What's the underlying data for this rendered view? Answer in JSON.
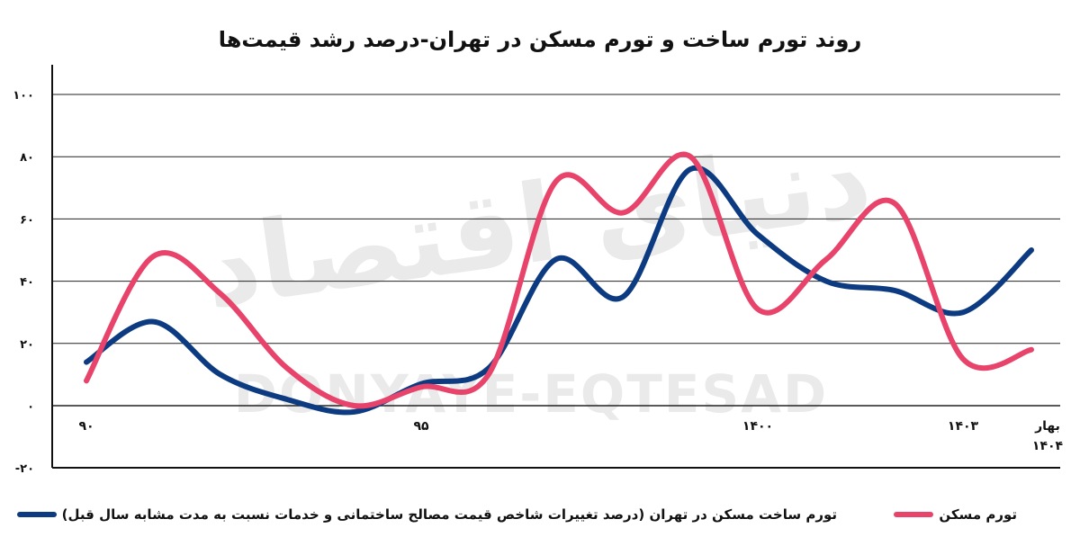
{
  "title": "روند تورم ساخت و تورم مسکن در تهران-درصد رشد قیمت‌ها",
  "watermark": {
    "fa": "دنیای اقتصاد",
    "en": "DONYAYE-EQTESAD"
  },
  "legend": {
    "housing_label": "تورم مسکن",
    "construction_label": "تورم ساخت مسکن در تهران (درصد تغییرات شاخص قیمت مصالح ساختمانی و خدمات نسبت به مدت مشابه سال قبل)"
  },
  "colors": {
    "housing": "#e8436a",
    "construction": "#0d3b82"
  },
  "chart_data": {
    "type": "line",
    "title": "روند تورم ساخت و تورم مسکن در تهران-درصد رشد قیمت‌ها",
    "xlabel": "",
    "ylabel": "",
    "ylim": [
      -20,
      110
    ],
    "yticks": [
      100,
      80,
      60,
      40,
      20,
      0,
      -20
    ],
    "ytick_labels": [
      "۱۰۰",
      "۸۰",
      "۶۰",
      "۴۰",
      "۲۰",
      "۰",
      "-۲۰"
    ],
    "xlim": [
      90,
      1404.5
    ],
    "x_tick_labels": [
      {
        "x": 90,
        "label": "۹۰"
      },
      {
        "x": 95,
        "label": "۹۵"
      },
      {
        "x": 1400,
        "label": "۱۴۰۰"
      },
      {
        "x": 1403,
        "label": "۱۴۰۳"
      },
      {
        "x": 1404.5,
        "label": "بهار ۱۴۰۴"
      }
    ],
    "grid": true,
    "legend_position": "bottom",
    "series": [
      {
        "name": "تورم مسکن",
        "color": "#e8436a",
        "values": [
          {
            "x": 90,
            "y": 8
          },
          {
            "x": 91,
            "y": 48
          },
          {
            "x": 92,
            "y": 36
          },
          {
            "x": 93,
            "y": 12
          },
          {
            "x": 94,
            "y": 0
          },
          {
            "x": 95,
            "y": 6
          },
          {
            "x": 96,
            "y": 10
          },
          {
            "x": 97,
            "y": 72
          },
          {
            "x": 98,
            "y": 62
          },
          {
            "x": 99,
            "y": 80
          },
          {
            "x": 1400,
            "y": 31
          },
          {
            "x": 1401,
            "y": 47
          },
          {
            "x": 1402,
            "y": 65
          },
          {
            "x": 1403,
            "y": 15
          },
          {
            "x": 1404.5,
            "y": 18
          }
        ]
      },
      {
        "name": "تورم ساخت مسکن در تهران (درصد تغییرات شاخص قیمت مصالح ساختمانی و خدمات نسبت به مدت مشابه سال قبل)",
        "color": "#0d3b82",
        "values": [
          {
            "x": 90,
            "y": 14
          },
          {
            "x": 91,
            "y": 27
          },
          {
            "x": 92,
            "y": 10
          },
          {
            "x": 93,
            "y": 2
          },
          {
            "x": 94,
            "y": -2
          },
          {
            "x": 95,
            "y": 7
          },
          {
            "x": 96,
            "y": 12
          },
          {
            "x": 97,
            "y": 47
          },
          {
            "x": 98,
            "y": 35
          },
          {
            "x": 99,
            "y": 76
          },
          {
            "x": 1400,
            "y": 55
          },
          {
            "x": 1401,
            "y": 40
          },
          {
            "x": 1402,
            "y": 37
          },
          {
            "x": 1403,
            "y": 30
          },
          {
            "x": 1404.5,
            "y": 50
          }
        ]
      }
    ]
  }
}
